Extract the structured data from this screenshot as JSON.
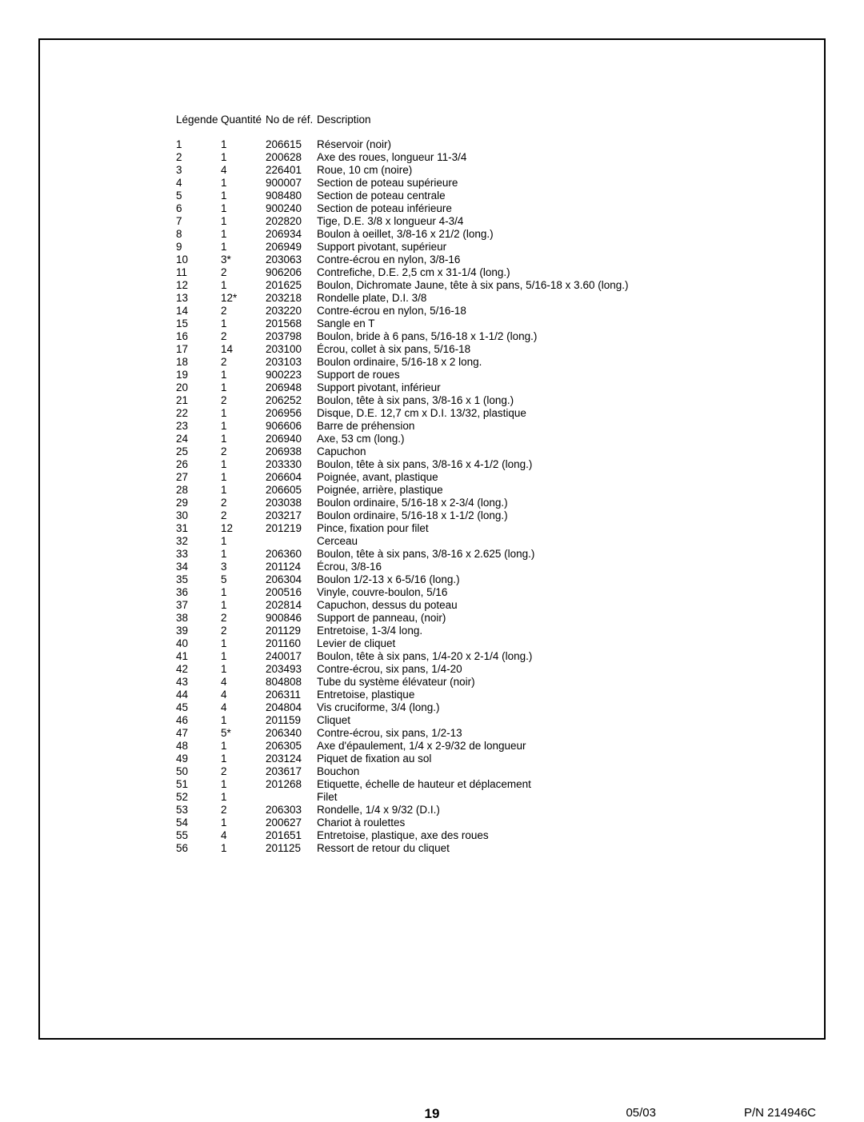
{
  "headers": {
    "key": "Légende",
    "qty": "Quantité",
    "ref": "No de réf.",
    "desc": "Description"
  },
  "rows": [
    {
      "key": "1",
      "qty": "1",
      "ref": "206615",
      "desc": "Réservoir (noir)"
    },
    {
      "key": "2",
      "qty": "1",
      "ref": "200628",
      "desc": "Axe des roues, longueur 11-3/4"
    },
    {
      "key": "3",
      "qty": "4",
      "ref": "226401",
      "desc": "Roue, 10 cm (noire)"
    },
    {
      "key": "4",
      "qty": "1",
      "ref": "900007",
      "desc": "Section de poteau supérieure"
    },
    {
      "key": "5",
      "qty": "1",
      "ref": "908480",
      "desc": "Section de poteau centrale"
    },
    {
      "key": "6",
      "qty": "1",
      "ref": "900240",
      "desc": "Section de poteau inférieure"
    },
    {
      "key": "7",
      "qty": "1",
      "ref": "202820",
      "desc": "Tige, D.E. 3/8 x longueur 4-3/4"
    },
    {
      "key": "8",
      "qty": "1",
      "ref": "206934",
      "desc": "Boulon à oeillet, 3/8-16 x 21/2 (long.)"
    },
    {
      "key": "9",
      "qty": "1",
      "ref": "206949",
      "desc": "Support pivotant, supérieur"
    },
    {
      "key": "10",
      "qty": "3*",
      "ref": "203063",
      "desc": "Contre-écrou en nylon, 3/8-16"
    },
    {
      "key": "11",
      "qty": "2",
      "ref": "906206",
      "desc": "Contrefiche, D.E. 2,5 cm x 31-1/4 (long.)"
    },
    {
      "key": "12",
      "qty": "1",
      "ref": "201625",
      "desc": "Boulon, Dichromate Jaune, tête à six pans, 5/16-18 x 3.60 (long.)"
    },
    {
      "key": "13",
      "qty": "12*",
      "ref": "203218",
      "desc": "Rondelle plate, D.I. 3/8"
    },
    {
      "key": "14",
      "qty": "2",
      "ref": "203220",
      "desc": "Contre-écrou en nylon, 5/16-18"
    },
    {
      "key": "15",
      "qty": "1",
      "ref": "201568",
      "desc": "Sangle en T"
    },
    {
      "key": "16",
      "qty": "2",
      "ref": "203798",
      "desc": "Boulon, bride à 6 pans, 5/16-18 x 1-1/2 (long.)"
    },
    {
      "key": "17",
      "qty": "14",
      "ref": "203100",
      "desc": "Écrou, collet à six pans, 5/16-18"
    },
    {
      "key": "18",
      "qty": "2",
      "ref": "203103",
      "desc": "Boulon ordinaire, 5/16-18 x 2 long."
    },
    {
      "key": "19",
      "qty": "1",
      "ref": "900223",
      "desc": "Support de roues"
    },
    {
      "key": "20",
      "qty": "1",
      "ref": "206948",
      "desc": "Support pivotant, inférieur"
    },
    {
      "key": "21",
      "qty": "2",
      "ref": "206252",
      "desc": "Boulon, tête à six pans, 3/8-16 x 1 (long.)"
    },
    {
      "key": "22",
      "qty": "1",
      "ref": "206956",
      "desc": "Disque, D.E. 12,7 cm x D.I. 13/32, plastique"
    },
    {
      "key": "23",
      "qty": "1",
      "ref": "906606",
      "desc": "Barre de préhension"
    },
    {
      "key": "24",
      "qty": "1",
      "ref": "206940",
      "desc": "Axe, 53 cm (long.)"
    },
    {
      "key": "25",
      "qty": "2",
      "ref": "206938",
      "desc": "Capuchon"
    },
    {
      "key": "26",
      "qty": "1",
      "ref": "203330",
      "desc": "Boulon, tête à six pans, 3/8-16 x 4-1/2 (long.)"
    },
    {
      "key": "27",
      "qty": "1",
      "ref": "206604",
      "desc": "Poignée, avant, plastique"
    },
    {
      "key": "28",
      "qty": "1",
      "ref": "206605",
      "desc": "Poignée, arrière, plastique"
    },
    {
      "key": "29",
      "qty": "2",
      "ref": "203038",
      "desc": "Boulon ordinaire, 5/16-18 x 2-3/4 (long.)"
    },
    {
      "key": "30",
      "qty": "2",
      "ref": "203217",
      "desc": "Boulon ordinaire, 5/16-18 x 1-1/2 (long.)"
    },
    {
      "key": "31",
      "qty": "12",
      "ref": "201219",
      "desc": "Pince, fixation pour filet"
    },
    {
      "key": "32",
      "qty": "1",
      "ref": "",
      "desc": "Cerceau"
    },
    {
      "key": "33",
      "qty": "1",
      "ref": "206360",
      "desc": "Boulon, tête à six pans, 3/8-16 x 2.625 (long.)"
    },
    {
      "key": "34",
      "qty": "3",
      "ref": "201124",
      "desc": "Écrou, 3/8-16"
    },
    {
      "key": "35",
      "qty": "5",
      "ref": "206304",
      "desc": "Boulon 1/2-13 x 6-5/16 (long.)"
    },
    {
      "key": "36",
      "qty": "1",
      "ref": "200516",
      "desc": "Vinyle, couvre-boulon, 5/16"
    },
    {
      "key": "37",
      "qty": "1",
      "ref": "202814",
      "desc": "Capuchon, dessus du poteau"
    },
    {
      "key": "38",
      "qty": "2",
      "ref": "900846",
      "desc": "Support de panneau, (noir)"
    },
    {
      "key": "39",
      "qty": "2",
      "ref": "201129",
      "desc": "Entretoise, 1-3/4 long."
    },
    {
      "key": "40",
      "qty": "1",
      "ref": "201160",
      "desc": "Levier de cliquet"
    },
    {
      "key": "41",
      "qty": "1",
      "ref": "240017",
      "desc": "Boulon, tête à six pans, 1/4-20 x 2-1/4 (long.)"
    },
    {
      "key": "42",
      "qty": "1",
      "ref": "203493",
      "desc": "Contre-écrou, six pans, 1/4-20"
    },
    {
      "key": "43",
      "qty": "4",
      "ref": "804808",
      "desc": "Tube du système élévateur (noir)"
    },
    {
      "key": "44",
      "qty": "4",
      "ref": "206311",
      "desc": "Entretoise, plastique"
    },
    {
      "key": "45",
      "qty": "4",
      "ref": "204804",
      "desc": "Vis cruciforme, 3/4 (long.)"
    },
    {
      "key": "46",
      "qty": "1",
      "ref": "201159",
      "desc": "Cliquet"
    },
    {
      "key": "47",
      "qty": "5*",
      "ref": "206340",
      "desc": "Contre-écrou, six pans, 1/2-13"
    },
    {
      "key": "48",
      "qty": "1",
      "ref": "206305",
      "desc": "Axe d'épaulement, 1/4 x 2-9/32 de longueur"
    },
    {
      "key": "49",
      "qty": "1",
      "ref": "203124",
      "desc": "Piquet de fixation au sol"
    },
    {
      "key": "50",
      "qty": "2",
      "ref": "203617",
      "desc": "Bouchon"
    },
    {
      "key": "51",
      "qty": "1",
      "ref": "201268",
      "desc": "Etiquette, échelle de hauteur et déplacement"
    },
    {
      "key": "52",
      "qty": "1",
      "ref": "",
      "desc": "Filet"
    },
    {
      "key": "53",
      "qty": "2",
      "ref": "206303",
      "desc": "Rondelle, 1/4 x 9/32 (D.I.)"
    },
    {
      "key": "54",
      "qty": "1",
      "ref": "200627",
      "desc": "Chariot à roulettes"
    },
    {
      "key": "55",
      "qty": "4",
      "ref": "201651",
      "desc": "Entretoise, plastique, axe des roues"
    },
    {
      "key": "56",
      "qty": "1",
      "ref": "201125",
      "desc": "Ressort de retour du cliquet"
    }
  ],
  "footer": {
    "page": "19",
    "date": "05/03",
    "pn": "P/N 214946C"
  }
}
